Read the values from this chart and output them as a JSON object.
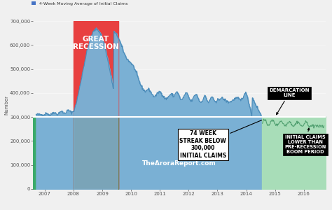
{
  "title": "4-Week Moving Average of Initial Claims",
  "ylabel": "Number",
  "watermark": "TheAroraReport.com",
  "bg_color": "#f0f0f0",
  "fig_bg": "#f0f0f0",
  "plot_bg": "#f0f0f0",
  "area_color": "#7ab0d4",
  "green_fill": "#3aaa6a",
  "olive_fill": "#7a6520",
  "light_green_fill": "#a8ddb8",
  "red_recession_color": "#e84040",
  "demarcation_y": 300000,
  "recession_start": 2008.0,
  "recession_end": 2009.55,
  "below300_start": 2014.55,
  "ylim": [
    0,
    700000
  ],
  "xlim_start": 2006.6,
  "xlim_end": 2016.75,
  "xticks": [
    2007,
    2008,
    2009,
    2010,
    2011,
    2012,
    2013,
    2014,
    2015,
    2016
  ],
  "yticks": [
    0,
    100000,
    200000,
    300000,
    400000,
    500000,
    600000,
    700000
  ],
  "ytick_labels": [
    "0",
    "100,000",
    "200,000",
    "300,000",
    "400,000",
    "500,000",
    "600,000",
    "700,000"
  ],
  "annotation_74week": "74 WEEK\nSTREAK BELOW\n300,000\nINITIAL CLAIMS",
  "annotation_demarcation": "DEMARCATION\nLINE",
  "annotation_lower": "INITIAL CLAIMS\nLOWER THAN\nPRE-RECESSION\nBOOM PERIOD",
  "great_recession_label": "GREAT\nRECESSION"
}
